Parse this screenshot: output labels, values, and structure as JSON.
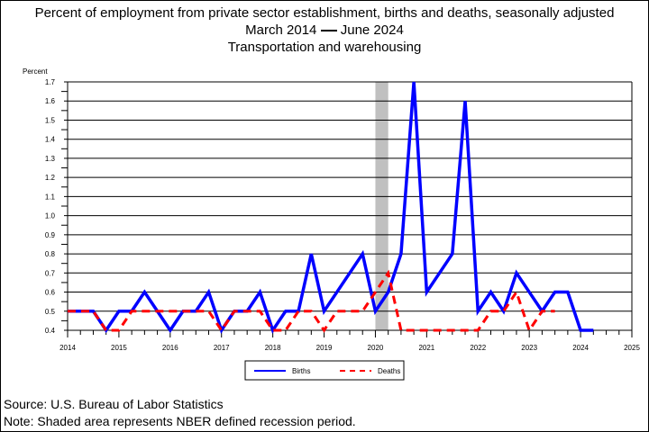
{
  "chart_data": {
    "type": "line",
    "title": "Percent of employment from private sector establishment, births and deaths, seasonally adjusted",
    "subtitle_start": "March 2014",
    "subtitle_end": "June 2024",
    "subtitle2": "Transportation and warehousing",
    "ylabel": "Percent",
    "ylim": [
      0.4,
      1.7
    ],
    "xlim": [
      2014,
      2025
    ],
    "yticks": [
      "0.4",
      "0.5",
      "0.6",
      "0.7",
      "0.8",
      "0.9",
      "1.0",
      "1.1",
      "1.2",
      "1.3",
      "1.4",
      "1.5",
      "1.6",
      "1.7"
    ],
    "xticks": [
      "2014",
      "2015",
      "2016",
      "2017",
      "2018",
      "2019",
      "2020",
      "2021",
      "2022",
      "2023",
      "2024",
      "2025"
    ],
    "recession": [
      2020.0,
      2020.25
    ],
    "x_start": 2014.0,
    "x_step": 0.25,
    "series": [
      {
        "name": "Births",
        "color": "#0000ff",
        "dash": false,
        "values": [
          0.5,
          0.5,
          0.5,
          0.4,
          0.5,
          0.5,
          0.6,
          0.5,
          0.4,
          0.5,
          0.5,
          0.6,
          0.4,
          0.5,
          0.5,
          0.6,
          0.4,
          0.5,
          0.5,
          0.8,
          0.5,
          0.6,
          0.7,
          0.8,
          0.5,
          0.6,
          0.8,
          1.7,
          0.6,
          0.7,
          0.8,
          1.6,
          0.5,
          0.6,
          0.5,
          0.7,
          0.6,
          0.5,
          0.6,
          0.6,
          0.4,
          0.4
        ]
      },
      {
        "name": "Deaths",
        "color": "#ff0000",
        "dash": true,
        "values": [
          0.5,
          0.5,
          0.5,
          0.4,
          0.4,
          0.5,
          0.5,
          0.5,
          0.5,
          0.5,
          0.5,
          0.5,
          0.4,
          0.5,
          0.5,
          0.5,
          0.4,
          0.4,
          0.5,
          0.5,
          0.4,
          0.5,
          0.5,
          0.5,
          0.6,
          0.7,
          0.4,
          0.4,
          0.4,
          0.4,
          0.4,
          0.4,
          0.4,
          0.5,
          0.5,
          0.6,
          0.4,
          0.5,
          0.5
        ]
      }
    ],
    "legend": "bottom-center",
    "grid": true
  },
  "footer": {
    "source": "Source: U.S. Bureau of Labor Statistics",
    "note": "Note: Shaded area represents NBER defined recession period."
  }
}
